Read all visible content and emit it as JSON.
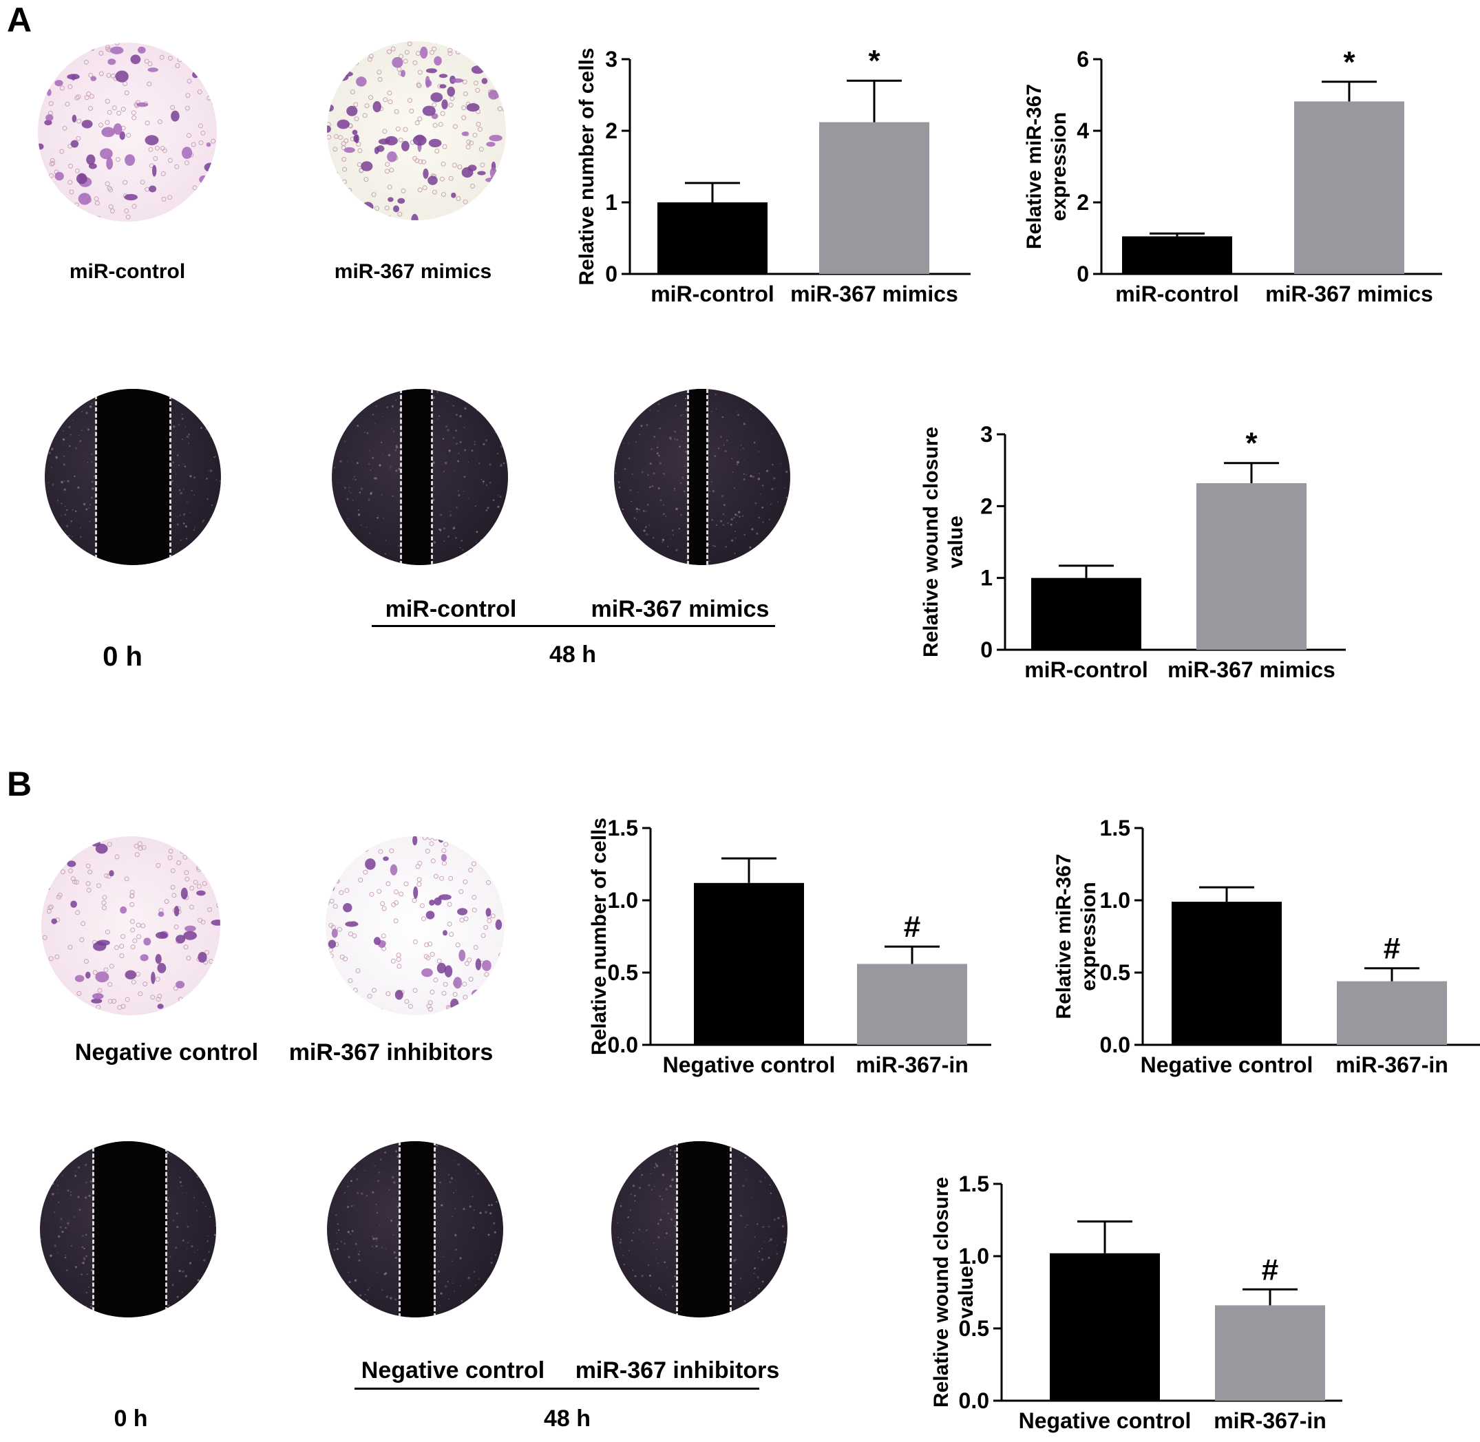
{
  "panels": [
    {
      "letter": "A",
      "transwell_labels": [
        "miR-control",
        "miR-367 mimics"
      ],
      "wound_time_0": "0 h",
      "wound_group_labels": [
        "miR-control",
        "miR-367 mimics"
      ],
      "wound_time_48": "48 h"
    },
    {
      "letter": "B",
      "transwell_labels": [
        "Negative control",
        "miR-367 inhibitors"
      ],
      "wound_time_0": "0 h",
      "wound_group_labels": [
        "Negative control",
        "miR-367 inhibitors"
      ],
      "wound_time_48": "48 h"
    }
  ],
  "colors": {
    "group1": "#000000",
    "group2": "#98989e"
  },
  "chart_data": [
    {
      "id": "A1",
      "type": "bar",
      "categories": [
        "miR-control",
        "miR-367 mimics"
      ],
      "values": [
        1.0,
        2.12
      ],
      "errors": [
        0.27,
        0.58
      ],
      "ylabel": [
        "Relative number of cells"
      ],
      "ylim": [
        0,
        3
      ],
      "yticks": [
        "0",
        "1",
        "2",
        "3"
      ],
      "ytick_values": [
        0,
        1,
        2,
        3
      ],
      "annotations": [
        "",
        "*"
      ]
    },
    {
      "id": "A2",
      "type": "bar",
      "categories": [
        "miR-control",
        "miR-367 mimics"
      ],
      "values": [
        1.05,
        4.82
      ],
      "errors": [
        0.08,
        0.55
      ],
      "ylabel": [
        "Relative miR-367",
        "expression"
      ],
      "ylim": [
        0,
        6
      ],
      "yticks": [
        "0",
        "2",
        "4",
        "6"
      ],
      "ytick_values": [
        0,
        2,
        4,
        6
      ],
      "annotations": [
        "",
        "*"
      ]
    },
    {
      "id": "A3",
      "type": "bar",
      "categories": [
        "miR-control",
        "miR-367 mimics"
      ],
      "values": [
        1.0,
        2.32
      ],
      "errors": [
        0.17,
        0.28
      ],
      "ylabel": [
        "Relative wound closure",
        "value"
      ],
      "ylim": [
        0,
        3
      ],
      "yticks": [
        "0",
        "1",
        "2",
        "3"
      ],
      "ytick_values": [
        0,
        1,
        2,
        3
      ],
      "annotations": [
        "",
        "*"
      ]
    },
    {
      "id": "B1",
      "type": "bar",
      "categories": [
        "Negative control",
        "miR-367-in"
      ],
      "values": [
        1.12,
        0.56
      ],
      "errors": [
        0.17,
        0.12
      ],
      "ylabel": [
        "Relative number of cells"
      ],
      "ylim": [
        0,
        1.5
      ],
      "yticks": [
        "0.0",
        "0.5",
        "1.0",
        "1.5"
      ],
      "ytick_values": [
        0,
        0.5,
        1.0,
        1.5
      ],
      "annotations": [
        "",
        "#"
      ]
    },
    {
      "id": "B2",
      "type": "bar",
      "categories": [
        "Negative control",
        "miR-367-in"
      ],
      "values": [
        0.99,
        0.44
      ],
      "errors": [
        0.1,
        0.09
      ],
      "ylabel": [
        "Relative miR-367",
        "expression"
      ],
      "ylim": [
        0,
        1.5
      ],
      "yticks": [
        "0.0",
        "0.5",
        "1.0",
        "1.5"
      ],
      "ytick_values": [
        0,
        0.5,
        1.0,
        1.5
      ],
      "annotations": [
        "",
        "#"
      ]
    },
    {
      "id": "B3",
      "type": "bar",
      "categories": [
        "Negative control",
        "miR-367-in"
      ],
      "values": [
        1.02,
        0.66
      ],
      "errors": [
        0.22,
        0.11
      ],
      "ylabel": [
        "Relative wound closure",
        "value"
      ],
      "ylim": [
        0,
        1.5
      ],
      "yticks": [
        "0.0",
        "0.5",
        "1.0",
        "1.5"
      ],
      "ytick_values": [
        0,
        0.5,
        1.0,
        1.5
      ],
      "annotations": [
        "",
        "#"
      ]
    }
  ]
}
